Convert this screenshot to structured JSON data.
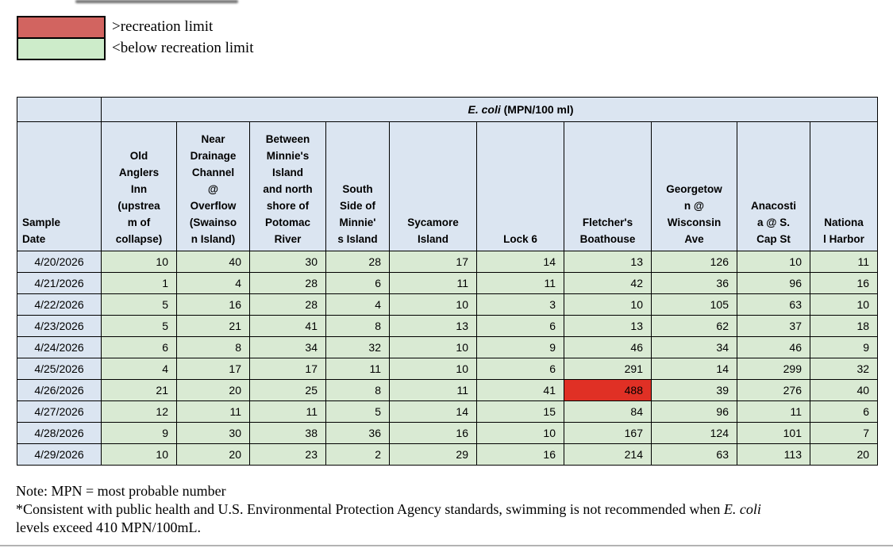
{
  "legend": {
    "items": [
      {
        "label": ">recreation limit",
        "color": "#d26460"
      },
      {
        "label": "<below recreation limit",
        "color": "#cdecca"
      }
    ]
  },
  "table": {
    "title_italic": "E. coli",
    "title_rest": " (MPN/100 ml)",
    "columns": [
      "Sample\nDate",
      "Old\nAnglers\nInn\n(upstrea\nm of\ncollapse)",
      "Near\nDrainage\nChannel\n@\nOverflow\n(Swainso\nn Island)",
      "Between\nMinnie's\nIsland\nand north\nshore of\nPotomac\nRiver",
      "South\nSide of\nMinnie'\ns Island",
      "Sycamore\nIsland",
      "Lock 6",
      "Fletcher's\nBoathouse",
      "Georgetow\nn @\nWisconsin\nAve",
      "Anacosti\na @ S.\nCap St",
      "Nationa\nl Harbor"
    ],
    "rows": [
      {
        "date": "4/20/2026",
        "values": [
          "10",
          "40",
          "30",
          "28",
          "17",
          "14",
          "13",
          "126",
          "10",
          "11"
        ]
      },
      {
        "date": "4/21/2026",
        "values": [
          "1",
          "4",
          "28",
          "6",
          "11",
          "11",
          "42",
          "36",
          "96",
          "16"
        ]
      },
      {
        "date": "4/22/2026",
        "values": [
          "5",
          "16",
          "28",
          "4",
          "10",
          "3",
          "10",
          "105",
          "63",
          "10"
        ]
      },
      {
        "date": "4/23/2026",
        "values": [
          "5",
          "21",
          "41",
          "8",
          "13",
          "6",
          "13",
          "62",
          "37",
          "18"
        ]
      },
      {
        "date": "4/24/2026",
        "values": [
          "6",
          "8",
          "34",
          "32",
          "10",
          "9",
          "46",
          "34",
          "46",
          "9"
        ]
      },
      {
        "date": "4/25/2026",
        "values": [
          "4",
          "17",
          "17",
          "11",
          "10",
          "6",
          "291",
          "14",
          "299",
          "32"
        ]
      },
      {
        "date": "4/26/2026",
        "values": [
          "21",
          "20",
          "25",
          "8",
          "11",
          "41",
          "488",
          "39",
          "276",
          "40"
        ]
      },
      {
        "date": "4/27/2026",
        "values": [
          "12",
          "11",
          "11",
          "5",
          "14",
          "15",
          "84",
          "96",
          "11",
          "6"
        ]
      },
      {
        "date": "4/28/2026",
        "values": [
          "9",
          "30",
          "38",
          "36",
          "16",
          "10",
          "167",
          "124",
          "101",
          "7"
        ]
      },
      {
        "date": "4/29/2026",
        "values": [
          "10",
          "20",
          "23",
          "2",
          "29",
          "16",
          "214",
          "63",
          "113",
          "20"
        ]
      }
    ],
    "highlight": {
      "row_index": 6,
      "value_index": 6,
      "value": "488",
      "date": "4/26/2026",
      "column": "Fletcher's Boathouse",
      "color": "#e03025"
    }
  },
  "colors": {
    "header_blue": "#dbe5f1",
    "cell_green": "#d9ead3",
    "alert_red": "#e03025",
    "legend_red": "#d26460",
    "legend_green": "#cdecca"
  },
  "note": {
    "line1": "Note: MPN = most probable number",
    "line2_pre": "*Consistent with public health and U.S. Environmental Protection Agency standards, swimming is not recommended when ",
    "line2_italic": "E. coli",
    "line2_post": "levels exceed 410 MPN/100mL."
  }
}
